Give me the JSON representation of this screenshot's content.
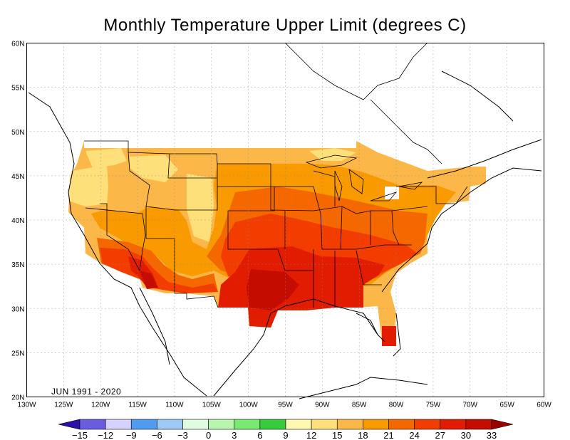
{
  "title": "Monthly Temperature Upper Limit (degrees C)",
  "period_label": "JUN 1991 - 2020",
  "lat_labels": [
    "60N",
    "55N",
    "50N",
    "45N",
    "40N",
    "35N",
    "30N",
    "25N",
    "20N"
  ],
  "lat_values": [
    60,
    55,
    50,
    45,
    40,
    35,
    30,
    25,
    20
  ],
  "lon_labels": [
    "130W",
    "125W",
    "120W",
    "115W",
    "110W",
    "105W",
    "100W",
    "95W",
    "90W",
    "85W",
    "80W",
    "75W",
    "70W",
    "65W",
    "60W"
  ],
  "lon_values": [
    -130,
    -125,
    -120,
    -115,
    -110,
    -105,
    -100,
    -95,
    -90,
    -85,
    -80,
    -75,
    -70,
    -65,
    -60
  ],
  "extent": {
    "lon_min": -130,
    "lon_max": -60,
    "lat_min": 20,
    "lat_max": 60
  },
  "colorbar": {
    "labels": [
      "-15",
      "-12",
      "-9",
      "-6",
      "-3",
      "0",
      "3",
      "6",
      "9",
      "12",
      "15",
      "18",
      "21",
      "24",
      "27",
      "30",
      "33"
    ],
    "colors": [
      "#2d10a8",
      "#6a5ce0",
      "#d6d2ff",
      "#4f9bf0",
      "#9dcaf6",
      "#e0fce0",
      "#b8f6b0",
      "#78ea70",
      "#36cc3c",
      "#fff8b0",
      "#fde07a",
      "#fbb848",
      "#f99a00",
      "#f56800",
      "#f23c00",
      "#e21c00",
      "#c40c00",
      "#9a0000"
    ]
  },
  "fields": [
    {
      "level": "12-15",
      "color": "#fde07a"
    },
    {
      "level": "15-18",
      "color": "#fbb848"
    },
    {
      "level": "18-21",
      "color": "#f99a00"
    },
    {
      "level": "21-24",
      "color": "#f56800"
    },
    {
      "level": "24-27",
      "color": "#f23c00"
    },
    {
      "level": "27-30",
      "color": "#e21c00"
    },
    {
      "level": "30-33",
      "color": "#c40c00"
    }
  ]
}
